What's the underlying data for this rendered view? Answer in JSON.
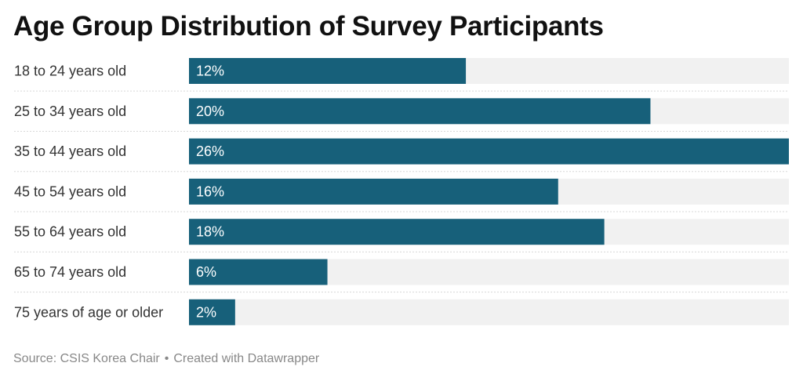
{
  "chart_data": {
    "type": "bar",
    "orientation": "horizontal",
    "title": "Age Group Distribution of Survey Participants",
    "categories": [
      "18 to 24 years old",
      "25 to 34 years old",
      "35 to 44 years old",
      "45 to 54 years old",
      "55 to 64 years old",
      "65 to 74 years old",
      "75 years of age or older"
    ],
    "values": [
      12,
      20,
      26,
      16,
      18,
      6,
      2
    ],
    "value_labels": [
      "12%",
      "20%",
      "26%",
      "16%",
      "18%",
      "6%",
      "2%"
    ],
    "xlim": [
      0,
      26
    ],
    "grid": false,
    "colors": {
      "bar": "#17607a",
      "track": "#f1f1f1",
      "separator": "#d8d8d8",
      "value_text": "#ffffff"
    }
  },
  "footer": {
    "source": "Source: CSIS Korea Chair",
    "separator": "•",
    "credit": "Created with Datawrapper"
  }
}
